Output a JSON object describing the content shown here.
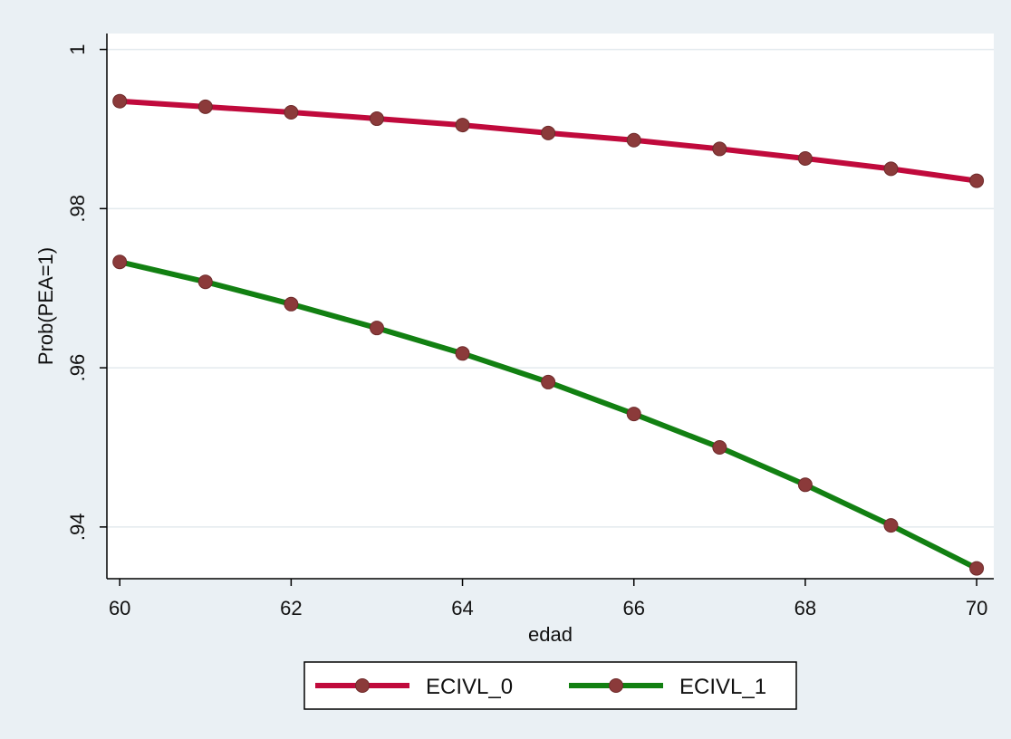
{
  "chart_data": {
    "type": "line",
    "title": "",
    "xlabel": "edad",
    "ylabel": "Prob(PEA=1)",
    "x": [
      60,
      61,
      62,
      63,
      64,
      65,
      66,
      67,
      68,
      69,
      70
    ],
    "x_ticks": [
      "60",
      "62",
      "64",
      "66",
      "68",
      "70"
    ],
    "y_ticks": [
      ".94",
      ".96",
      ".98",
      "1"
    ],
    "xlim": [
      59.85,
      70.2
    ],
    "ylim": [
      0.9335,
      1.002
    ],
    "grid": true,
    "legend_position": "bottom",
    "series": [
      {
        "name": "ECIVL_0",
        "color": "#c00a3c",
        "values": [
          0.9935,
          0.9928,
          0.9921,
          0.9913,
          0.9905,
          0.9895,
          0.9886,
          0.9875,
          0.9863,
          0.985,
          0.9835
        ]
      },
      {
        "name": "ECIVL_1",
        "color": "#128012",
        "values": [
          0.9733,
          0.9708,
          0.968,
          0.965,
          0.9618,
          0.9582,
          0.9542,
          0.95,
          0.9453,
          0.9402,
          0.9348
        ]
      }
    ],
    "colors": {
      "background": "#eaf0f4",
      "plot_background": "#ffffff",
      "grid": "#e3eaee",
      "marker": "#8b3a3a",
      "axis": "#000000"
    }
  }
}
